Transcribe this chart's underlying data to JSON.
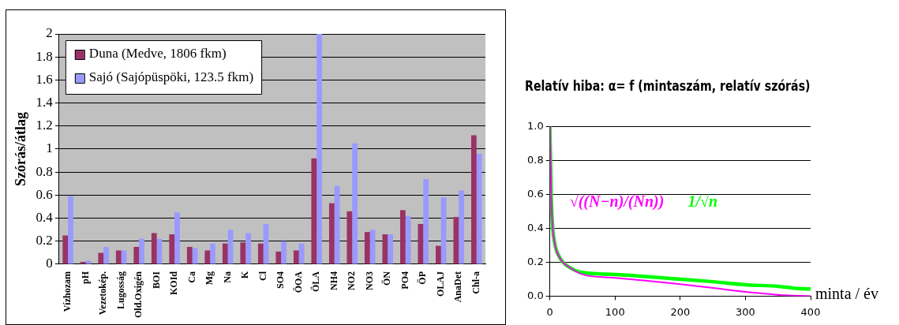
{
  "chart_data": [
    {
      "type": "bar",
      "ylabel": "Szórás/átlag",
      "categories": [
        "Vízhozam",
        "pH",
        "Vezetokép.",
        "Lugosság",
        "Old.Oxigén",
        "BOI",
        "KOId",
        "Ca",
        "Mg",
        "Na",
        "K",
        "Cl",
        "SO4",
        "ÖOA",
        "ÖLA",
        "NH4",
        "NO2",
        "NO3",
        "ÖN",
        "PO4",
        "ÖP",
        "OLAJ",
        "AnaDet",
        "Chl-a"
      ],
      "series": [
        {
          "name": "Duna (Medve, 1806 fkm)",
          "color": "#993366",
          "values": [
            0.25,
            0.02,
            0.1,
            0.12,
            0.15,
            0.27,
            0.26,
            0.15,
            0.12,
            0.18,
            0.19,
            0.18,
            0.11,
            0.12,
            0.92,
            0.53,
            0.46,
            0.28,
            0.26,
            0.47,
            0.35,
            0.16,
            0.41,
            1.12
          ]
        },
        {
          "name": "Sajó (Sajópüspöki, 123.5 fkm)",
          "color": "#9999ff",
          "values": [
            0.59,
            0.03,
            0.15,
            0.12,
            0.22,
            0.22,
            0.45,
            0.14,
            0.18,
            0.3,
            0.27,
            0.35,
            0.2,
            0.18,
            2.0,
            0.68,
            1.05,
            0.3,
            0.26,
            0.42,
            0.74,
            0.58,
            0.64,
            0.96
          ]
        }
      ],
      "ylim": [
        0,
        2
      ],
      "yticks": [
        0,
        0.2,
        0.4,
        0.6,
        0.8,
        1,
        1.2,
        1.4,
        1.6,
        1.8,
        2
      ],
      "grid": "y",
      "legend": "top left"
    },
    {
      "type": "line",
      "title": "Relatív hiba: α= f (mintaszám, relatív szórás)",
      "xlabel": "minta / év",
      "series": [
        {
          "name": "1/√n",
          "color": "#00ff00",
          "x": [
            0,
            2,
            4,
            8,
            12,
            20,
            30,
            48,
            100,
            150,
            200,
            250,
            300,
            350,
            380,
            400
          ],
          "values": [
            1.0,
            0.6,
            0.42,
            0.3,
            0.25,
            0.2,
            0.17,
            0.14,
            0.128,
            0.115,
            0.1,
            0.085,
            0.067,
            0.058,
            0.045,
            0.042
          ]
        },
        {
          "name": "√((N−n)/(Nn))",
          "color": "#ff00ff",
          "x": [
            0,
            2,
            4,
            8,
            12,
            20,
            30,
            50,
            100,
            150,
            200,
            250,
            300,
            330,
            360,
            400
          ],
          "values": [
            1.0,
            0.6,
            0.42,
            0.3,
            0.25,
            0.2,
            0.17,
            0.128,
            0.108,
            0.09,
            0.07,
            0.048,
            0.025,
            0.015,
            0.005,
            0
          ]
        }
      ],
      "xlim": [
        0,
        400
      ],
      "xticks": [
        0,
        100,
        200,
        300,
        400
      ],
      "ylim": [
        0,
        1
      ],
      "yticks": [
        {
          "value": 0,
          "label": "0.0"
        },
        {
          "value": 0.2,
          "label": "0.2"
        },
        {
          "value": 0.4,
          "label": "0.4"
        },
        {
          "value": 0.6,
          "label": "0.6"
        },
        {
          "value": 0.8,
          "label": "0.8"
        },
        {
          "value": 1,
          "label": "1.0"
        }
      ],
      "grid": "y",
      "legend": false,
      "marker": "none",
      "line_style": "solid"
    }
  ]
}
